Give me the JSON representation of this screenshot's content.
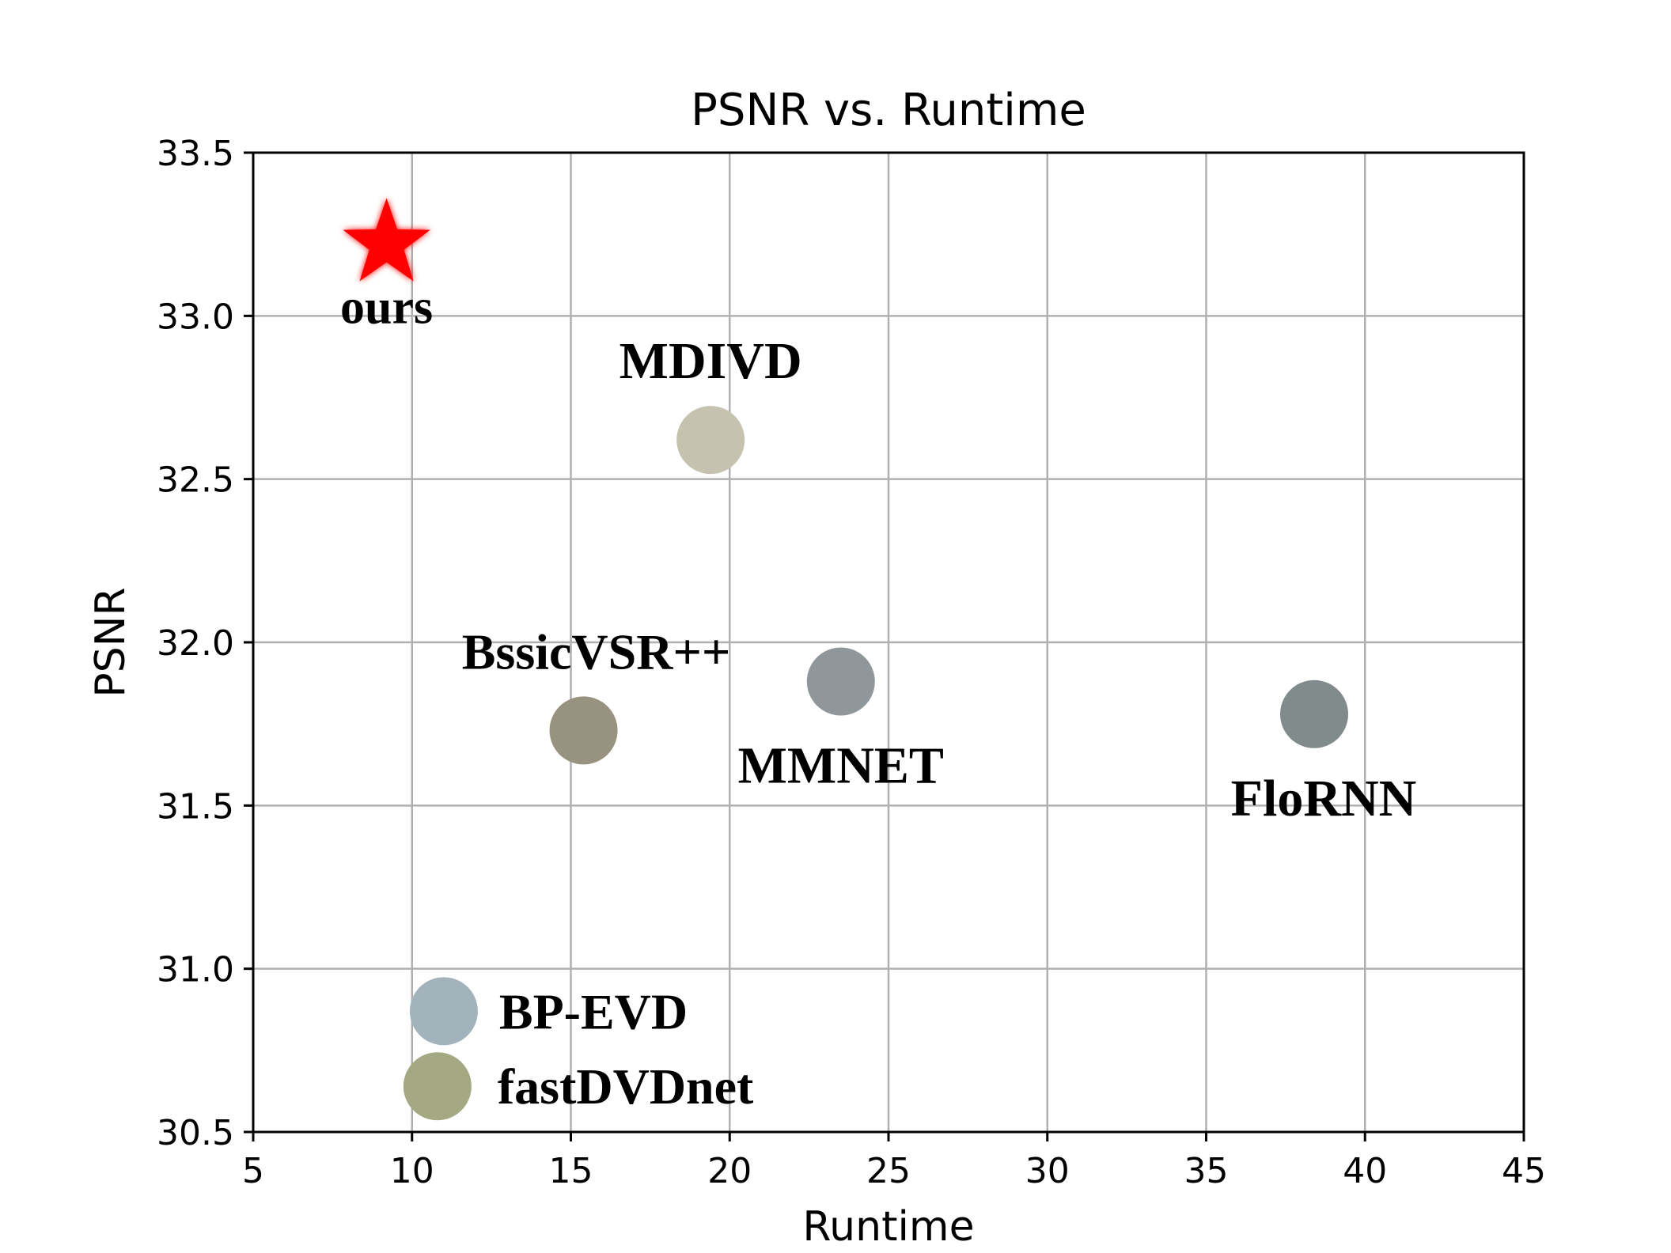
{
  "chart_data": {
    "type": "scatter",
    "title": "PSNR vs. Runtime",
    "xlabel": "Runtime",
    "ylabel": "PSNR",
    "xlim": [
      5,
      45
    ],
    "ylim": [
      30.5,
      33.5
    ],
    "xticks": [
      5,
      10,
      15,
      20,
      25,
      30,
      35,
      40,
      45
    ],
    "yticks": [
      30.5,
      31.0,
      31.5,
      32.0,
      32.5,
      33.0,
      33.5
    ],
    "xtick_labels": [
      "5",
      "10",
      "15",
      "20",
      "25",
      "30",
      "35",
      "40",
      "45"
    ],
    "ytick_labels": [
      "30.5",
      "31.0",
      "31.5",
      "32.0",
      "32.5",
      "33.0",
      "33.5"
    ],
    "grid": true,
    "points": [
      {
        "label": "ours",
        "x": 9.2,
        "y": 33.22,
        "marker": "star",
        "color": "#ff0000"
      },
      {
        "label": "MDIVD",
        "x": 19.4,
        "y": 32.62,
        "marker": "circle",
        "color": "#c5c3b0"
      },
      {
        "label": "BssicVSR++",
        "x": 15.4,
        "y": 31.73,
        "marker": "circle",
        "color": "#989280"
      },
      {
        "label": "MMNET",
        "x": 23.5,
        "y": 31.88,
        "marker": "circle",
        "color": "#8f979a"
      },
      {
        "label": "FloRNN",
        "x": 38.4,
        "y": 31.78,
        "marker": "circle",
        "color": "#828b8b"
      },
      {
        "label": "BP-EVD",
        "x": 11.0,
        "y": 30.87,
        "marker": "circle",
        "color": "#a2b3bb"
      },
      {
        "label": "fastDVDnet",
        "x": 10.8,
        "y": 30.64,
        "marker": "circle",
        "color": "#a4a883"
      }
    ]
  }
}
